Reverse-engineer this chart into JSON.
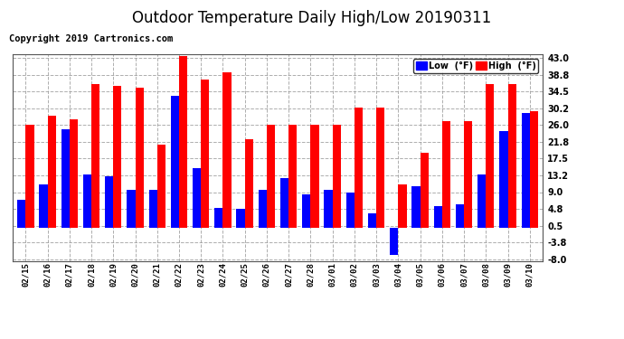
{
  "title": "Outdoor Temperature Daily High/Low 20190311",
  "copyright": "Copyright 2019 Cartronics.com",
  "legend_low": "Low  (°F)",
  "legend_high": "High  (°F)",
  "categories": [
    "02/15",
    "02/16",
    "02/17",
    "02/18",
    "02/19",
    "02/20",
    "02/21",
    "02/22",
    "02/23",
    "02/24",
    "02/25",
    "02/26",
    "02/27",
    "02/28",
    "03/01",
    "03/02",
    "03/03",
    "03/04",
    "03/05",
    "03/06",
    "03/07",
    "03/08",
    "03/09",
    "03/10"
  ],
  "high": [
    26.0,
    28.5,
    27.5,
    36.5,
    36.0,
    35.5,
    21.0,
    43.5,
    37.5,
    39.5,
    22.5,
    26.0,
    26.0,
    26.0,
    26.0,
    30.5,
    30.5,
    11.0,
    19.0,
    27.0,
    27.0,
    36.5,
    36.5,
    29.5
  ],
  "low": [
    7.0,
    11.0,
    25.0,
    13.5,
    13.0,
    9.5,
    9.5,
    33.5,
    15.0,
    5.0,
    4.8,
    9.5,
    12.5,
    8.5,
    9.5,
    9.0,
    3.5,
    -7.0,
    10.5,
    5.5,
    6.0,
    13.5,
    24.5,
    29.0
  ],
  "high_color": "#ff0000",
  "low_color": "#0000ff",
  "bg_color": "#ffffff",
  "grid_color": "#aaaaaa",
  "ylim_min": -8.0,
  "ylim_max": 44.0,
  "yticks": [
    -8.0,
    -3.8,
    0.5,
    4.8,
    9.0,
    13.2,
    17.5,
    21.8,
    26.0,
    30.2,
    34.5,
    38.8,
    43.0
  ],
  "title_fontsize": 12,
  "copyright_fontsize": 7.5,
  "bar_width": 0.38
}
